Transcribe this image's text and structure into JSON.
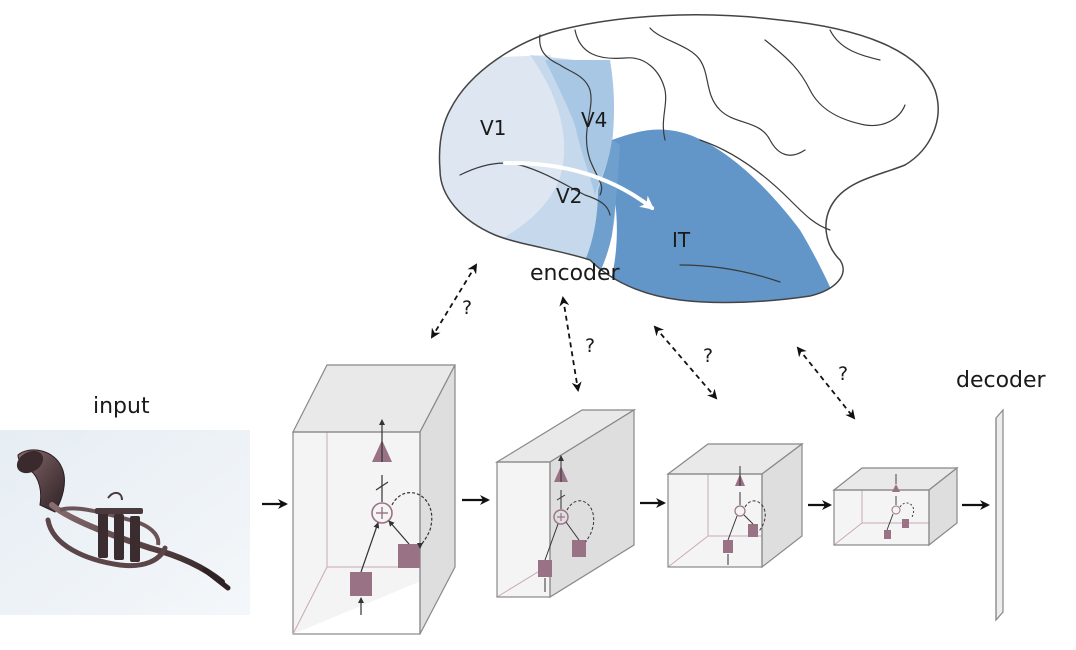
{
  "labels": {
    "input": "input",
    "encoder": "encoder",
    "decoder": "decoder"
  },
  "brain": {
    "regions": [
      "V1",
      "V2",
      "V4",
      "IT"
    ]
  },
  "mapping_question": "?",
  "colors": {
    "v1": "#dde6f1",
    "v2": "#c5d8ec",
    "v4": "#9fc0e1",
    "it": "#6396c8",
    "unit": "#9a7286",
    "block_edge": "#8a8a8a",
    "block_fill": "#f2f2f2"
  }
}
